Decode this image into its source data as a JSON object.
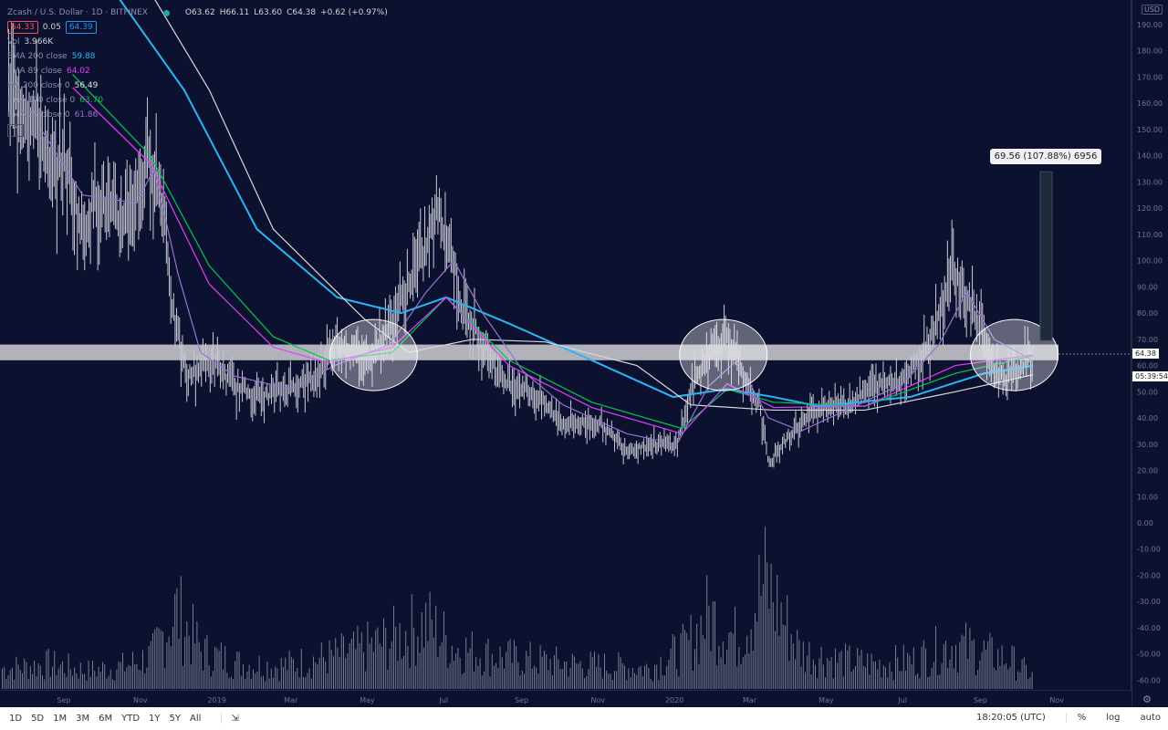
{
  "header": {
    "symbol": "Zcash / U.S. Dollar · 1D · BITFINEX",
    "open": "O63.62",
    "high": "H66.11",
    "low": "L63.60",
    "close": "C64.38",
    "change": "+0.62 (+0.97%)",
    "bid": "64.33",
    "spread": "0.05",
    "ask": "64.39",
    "status_color": "#26a69a"
  },
  "indicators": [
    {
      "label": "Vol",
      "value": "3.966K",
      "color": "#d1d4dc"
    },
    {
      "label": "EMA 200 close",
      "value": "59.88",
      "color": "#29b6f6"
    },
    {
      "label": "EMA 89 close",
      "value": "64.02",
      "color": "#e040fb"
    },
    {
      "label": "MA 200 close 0",
      "value": "56.49",
      "color": "#e0e0e0"
    },
    {
      "label": "EMA 100 close 0",
      "value": "63.70",
      "color": "#00c853"
    },
    {
      "label": "EMA 25 close 0",
      "value": "61.86",
      "color": "#9575cd"
    }
  ],
  "measure_label": "69.56 (107.88%) 6956",
  "currency": "USD",
  "last_price": "64.38",
  "countdown": "05:39:54",
  "toolbar": {
    "ranges": [
      "1D",
      "5D",
      "1M",
      "3M",
      "6M",
      "YTD",
      "1Y",
      "5Y",
      "All"
    ],
    "clock": "18:20:05 (UTC)",
    "percent": "%",
    "log": "log",
    "auto": "auto"
  },
  "chart_data": {
    "type": "line",
    "yticks": [
      "190.00",
      "180.00",
      "170.00",
      "160.00",
      "150.00",
      "140.00",
      "130.00",
      "120.00",
      "110.00",
      "100.00",
      "90.00",
      "80.00",
      "70.00",
      "60.00",
      "50.00",
      "40.00",
      "30.00",
      "20.00",
      "10.00",
      "0.00",
      "-10.00",
      "-20.00",
      "-30.00",
      "-40.00",
      "-50.00",
      "-60.00"
    ],
    "ylim": [
      -63,
      200
    ],
    "xticks": [
      {
        "label": "Sep",
        "date": "2018-09-01"
      },
      {
        "label": "Nov",
        "date": "2018-11-01"
      },
      {
        "label": "2019",
        "date": "2019-01-01"
      },
      {
        "label": "Mar",
        "date": "2019-03-01"
      },
      {
        "label": "May",
        "date": "2019-05-01"
      },
      {
        "label": "Jul",
        "date": "2019-07-01"
      },
      {
        "label": "Sep",
        "date": "2019-09-01"
      },
      {
        "label": "Nov",
        "date": "2019-11-01"
      },
      {
        "label": "2020",
        "date": "2020-01-01"
      },
      {
        "label": "Mar",
        "date": "2020-03-01"
      },
      {
        "label": "May",
        "date": "2020-05-01"
      },
      {
        "label": "Jul",
        "date": "2020-07-01"
      },
      {
        "label": "Sep",
        "date": "2020-09-01"
      },
      {
        "label": "Nov",
        "date": "2020-11-01"
      }
    ],
    "price": [
      [
        "2018-07-19",
        165
      ],
      [
        "2018-08-14",
        150
      ],
      [
        "2018-08-21",
        130
      ],
      [
        "2018-09-01",
        140
      ],
      [
        "2018-09-16",
        110
      ],
      [
        "2018-09-26",
        125
      ],
      [
        "2018-10-15",
        115
      ],
      [
        "2018-10-29",
        125
      ],
      [
        "2018-11-09",
        140
      ],
      [
        "2018-11-20",
        120
      ],
      [
        "2018-11-27",
        80
      ],
      [
        "2018-12-08",
        55
      ],
      [
        "2018-12-19",
        60
      ],
      [
        "2019-01-01",
        60
      ],
      [
        "2019-01-15",
        52
      ],
      [
        "2019-02-06",
        48
      ],
      [
        "2019-03-01",
        52
      ],
      [
        "2019-03-21",
        55
      ],
      [
        "2019-04-05",
        70
      ],
      [
        "2019-05-01",
        62
      ],
      [
        "2019-05-19",
        75
      ],
      [
        "2019-06-02",
        90
      ],
      [
        "2019-06-17",
        105
      ],
      [
        "2019-06-26",
        120
      ],
      [
        "2019-07-09",
        100
      ],
      [
        "2019-07-16",
        80
      ],
      [
        "2019-08-01",
        70
      ],
      [
        "2019-08-15",
        55
      ],
      [
        "2019-09-02",
        52
      ],
      [
        "2019-09-20",
        45
      ],
      [
        "2019-10-04",
        38
      ],
      [
        "2019-11-02",
        38
      ],
      [
        "2019-11-24",
        28
      ],
      [
        "2019-12-16",
        30
      ],
      [
        "2020-01-03",
        30
      ],
      [
        "2020-01-14",
        50
      ],
      [
        "2020-01-28",
        65
      ],
      [
        "2020-02-12",
        72
      ],
      [
        "2020-02-27",
        52
      ],
      [
        "2020-03-09",
        45
      ],
      [
        "2020-03-16",
        22
      ],
      [
        "2020-03-27",
        30
      ],
      [
        "2020-04-11",
        38
      ],
      [
        "2020-04-29",
        45
      ],
      [
        "2020-05-17",
        45
      ],
      [
        "2020-06-08",
        52
      ],
      [
        "2020-07-01",
        55
      ],
      [
        "2020-07-15",
        62
      ],
      [
        "2020-07-30",
        80
      ],
      [
        "2020-08-10",
        98
      ],
      [
        "2020-08-21",
        85
      ],
      [
        "2020-09-01",
        75
      ],
      [
        "2020-09-12",
        58
      ],
      [
        "2020-09-23",
        55
      ],
      [
        "2020-10-04",
        60
      ],
      [
        "2020-10-13",
        64.38
      ]
    ],
    "series": [
      {
        "name": "EMA 200 close",
        "color": "#29b6f6",
        "points": [
          [
            "2018-10-15",
            200
          ],
          [
            "2018-12-06",
            165
          ],
          [
            "2019-02-02",
            112
          ],
          [
            "2019-04-07",
            86
          ],
          [
            "2019-05-28",
            80
          ],
          [
            "2019-07-03",
            86
          ],
          [
            "2019-08-22",
            76
          ],
          [
            "2019-10-27",
            62
          ],
          [
            "2019-12-31",
            48
          ],
          [
            "2020-02-12",
            51
          ],
          [
            "2020-03-20",
            48
          ],
          [
            "2020-04-25",
            44.5
          ],
          [
            "2020-07-07",
            48
          ],
          [
            "2020-09-04",
            57
          ],
          [
            "2020-10-13",
            59.88
          ]
        ]
      },
      {
        "name": "MA 200 close 0",
        "color": "#d8d8d8",
        "points": [
          [
            "2018-11-12",
            200
          ],
          [
            "2018-12-26",
            165
          ],
          [
            "2019-02-15",
            112
          ],
          [
            "2019-04-28",
            78
          ],
          [
            "2019-06-03",
            65
          ],
          [
            "2019-07-24",
            70
          ],
          [
            "2019-09-20",
            69
          ],
          [
            "2019-12-02",
            60
          ],
          [
            "2020-01-14",
            45
          ],
          [
            "2020-03-20",
            43
          ],
          [
            "2020-06-01",
            43
          ],
          [
            "2020-08-12",
            50
          ],
          [
            "2020-10-13",
            56.49
          ]
        ]
      },
      {
        "name": "EMA 100 close 0",
        "color": "#00c853",
        "points": [
          [
            "2018-09-08",
            171
          ],
          [
            "2018-11-09",
            140
          ],
          [
            "2018-12-26",
            98
          ],
          [
            "2019-02-15",
            71
          ],
          [
            "2019-03-31",
            62
          ],
          [
            "2019-05-21",
            65
          ],
          [
            "2019-07-03",
            86
          ],
          [
            "2019-08-22",
            62
          ],
          [
            "2019-10-27",
            46
          ],
          [
            "2020-01-07",
            36
          ],
          [
            "2020-02-12",
            51
          ],
          [
            "2020-03-20",
            46
          ],
          [
            "2020-06-01",
            44.5
          ],
          [
            "2020-08-12",
            57
          ],
          [
            "2020-10-13",
            63.7
          ]
        ]
      },
      {
        "name": "EMA 89 close",
        "color": "#e040fb",
        "points": [
          [
            "2018-09-08",
            166
          ],
          [
            "2018-11-09",
            137
          ],
          [
            "2018-12-26",
            91
          ],
          [
            "2019-02-15",
            67
          ],
          [
            "2019-03-31",
            61
          ],
          [
            "2019-05-21",
            67
          ],
          [
            "2019-07-03",
            86
          ],
          [
            "2019-08-22",
            60
          ],
          [
            "2019-10-27",
            44
          ],
          [
            "2020-01-07",
            34
          ],
          [
            "2020-02-12",
            53
          ],
          [
            "2020-03-20",
            44
          ],
          [
            "2020-06-01",
            44.5
          ],
          [
            "2020-08-12",
            60
          ],
          [
            "2020-10-13",
            64.02
          ]
        ]
      },
      {
        "name": "EMA 25 close 0",
        "color": "#9575cd",
        "points": [
          [
            "2018-08-14",
            150
          ],
          [
            "2018-09-16",
            125
          ],
          [
            "2018-10-29",
            122
          ],
          [
            "2018-11-12",
            135
          ],
          [
            "2018-12-01",
            95
          ],
          [
            "2018-12-19",
            65
          ],
          [
            "2019-01-15",
            56
          ],
          [
            "2019-03-01",
            51
          ],
          [
            "2019-04-05",
            60
          ],
          [
            "2019-05-19",
            68
          ],
          [
            "2019-06-17",
            88
          ],
          [
            "2019-07-09",
            100
          ],
          [
            "2019-08-01",
            80
          ],
          [
            "2019-09-02",
            58
          ],
          [
            "2019-10-04",
            45
          ],
          [
            "2019-11-24",
            34
          ],
          [
            "2020-01-03",
            30
          ],
          [
            "2020-01-28",
            52
          ],
          [
            "2020-02-20",
            62
          ],
          [
            "2020-03-16",
            40
          ],
          [
            "2020-04-11",
            35
          ],
          [
            "2020-05-17",
            43
          ],
          [
            "2020-07-01",
            53
          ],
          [
            "2020-07-30",
            68
          ],
          [
            "2020-08-21",
            88
          ],
          [
            "2020-09-12",
            70
          ],
          [
            "2020-10-13",
            61.86
          ]
        ]
      }
    ],
    "volume": [
      [
        "2018-07-19",
        25
      ],
      [
        "2018-08-20",
        30
      ],
      [
        "2018-09-20",
        22
      ],
      [
        "2018-10-20",
        28
      ],
      [
        "2018-11-10",
        40
      ],
      [
        "2018-11-29",
        95
      ],
      [
        "2018-12-20",
        45
      ],
      [
        "2019-01-20",
        30
      ],
      [
        "2019-02-20",
        28
      ],
      [
        "2019-03-20",
        35
      ],
      [
        "2019-04-20",
        45
      ],
      [
        "2019-05-20",
        60
      ],
      [
        "2019-06-17",
        80
      ],
      [
        "2019-07-10",
        50
      ],
      [
        "2019-08-10",
        40
      ],
      [
        "2019-09-10",
        35
      ],
      [
        "2019-10-10",
        30
      ],
      [
        "2019-11-10",
        28
      ],
      [
        "2019-12-10",
        25
      ],
      [
        "2020-01-10",
        50
      ],
      [
        "2020-01-28",
        90
      ],
      [
        "2020-02-20",
        60
      ],
      [
        "2020-03-13",
        130
      ],
      [
        "2020-04-10",
        45
      ],
      [
        "2020-05-10",
        35
      ],
      [
        "2020-06-10",
        30
      ],
      [
        "2020-07-10",
        35
      ],
      [
        "2020-08-10",
        55
      ],
      [
        "2020-09-01",
        45
      ],
      [
        "2020-09-25",
        35
      ],
      [
        "2020-10-13",
        15
      ]
    ],
    "annotations": {
      "support_zone": [
        62,
        68
      ],
      "circled_dates": [
        "2019-05-06",
        "2020-02-09",
        "2020-09-28"
      ],
      "measure_range": [
        69.56,
        133.9
      ]
    }
  }
}
